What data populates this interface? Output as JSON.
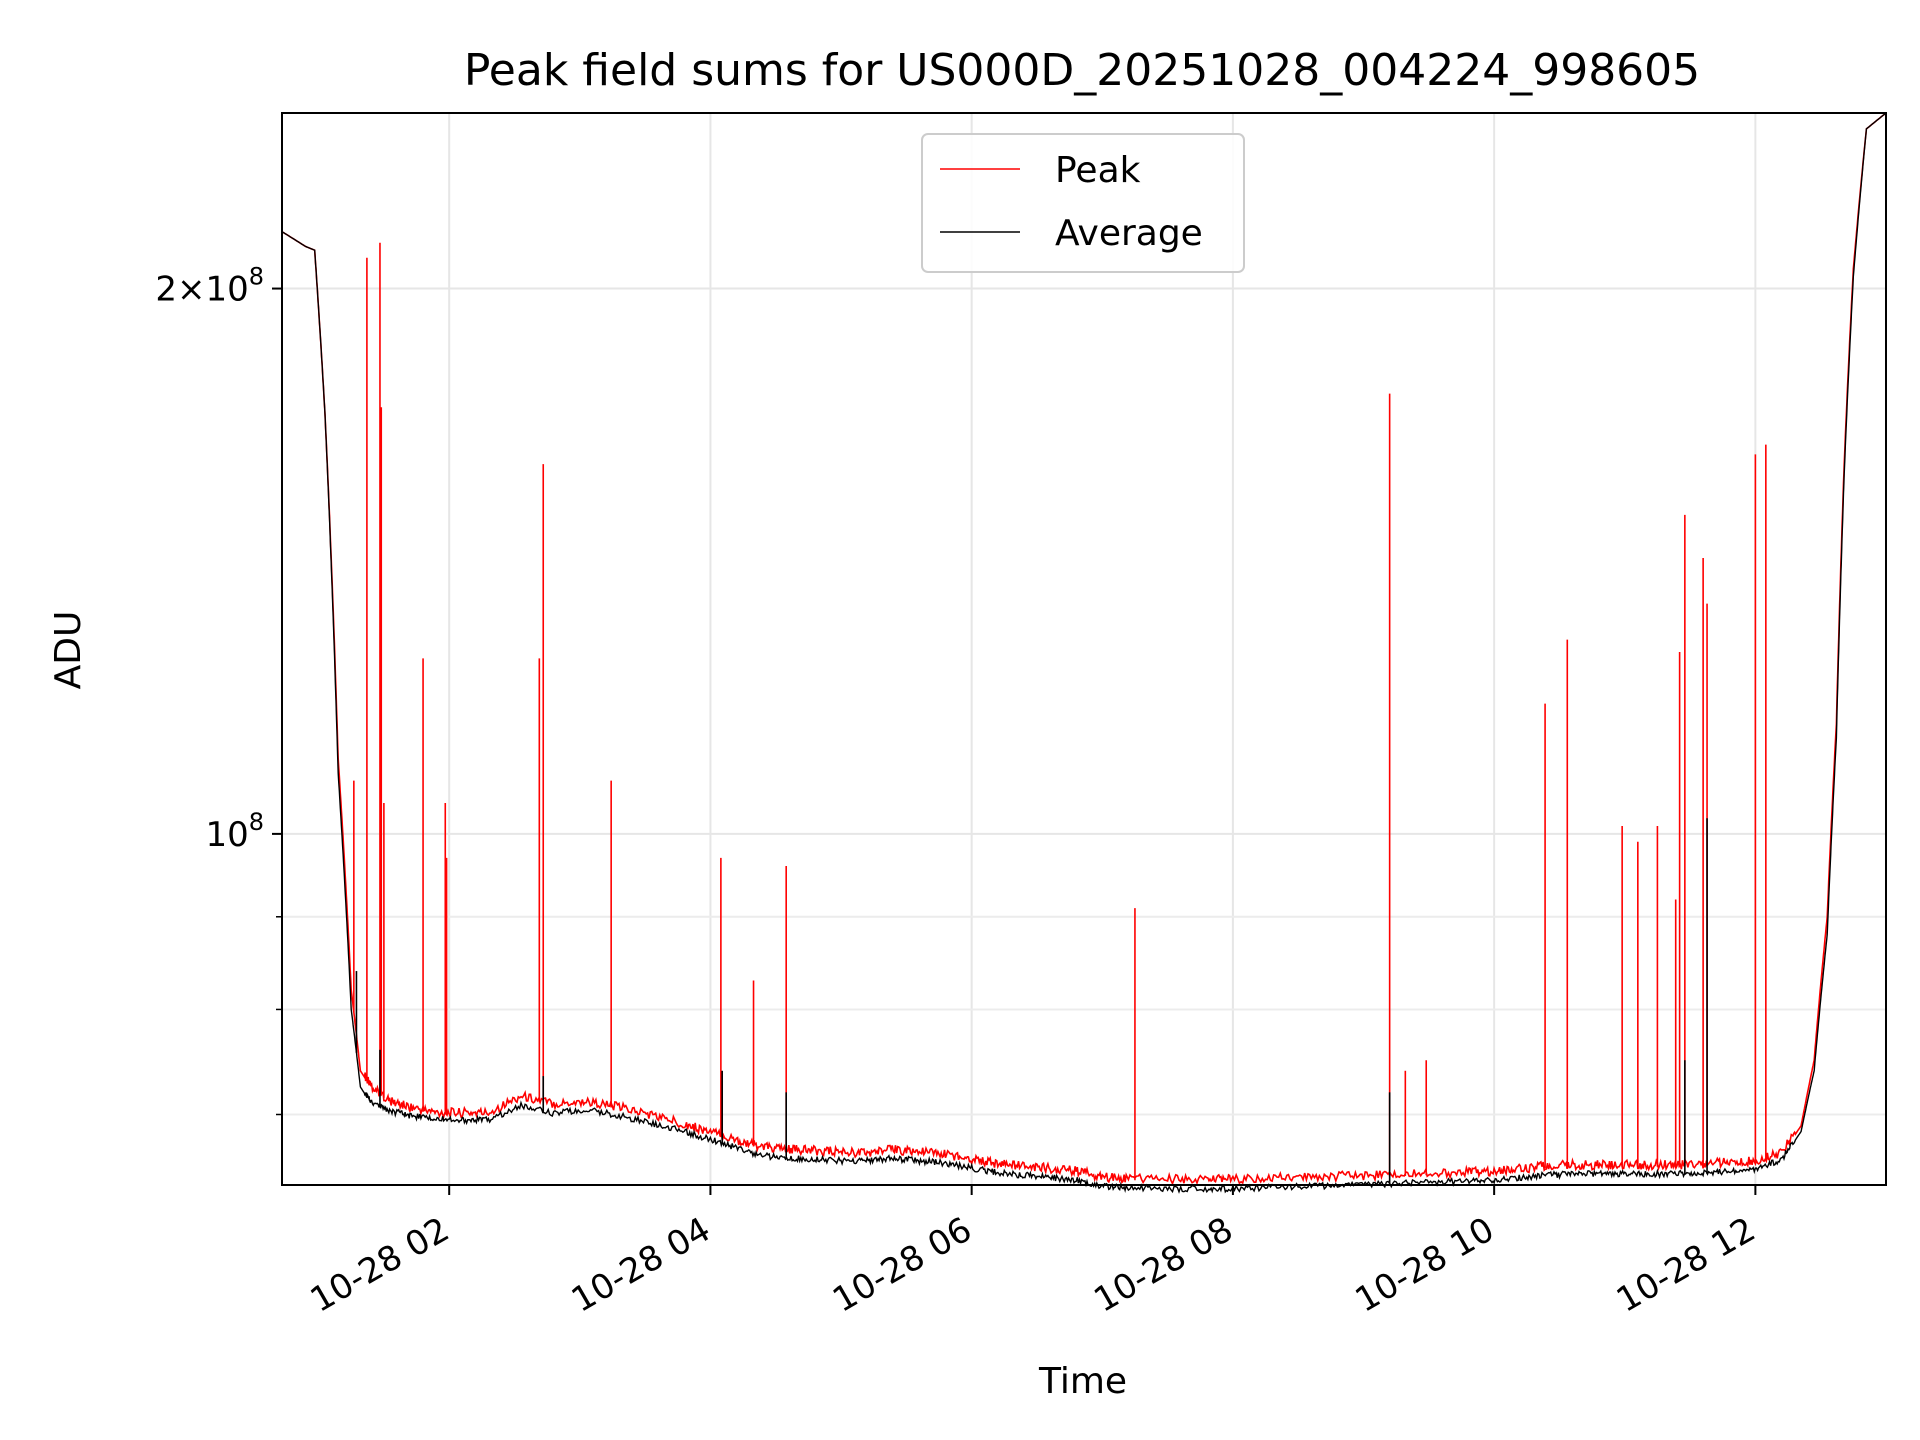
{
  "chart_data": {
    "type": "line",
    "title": "Peak field sums for US000D_20251028_004224_998605",
    "xlabel": "Time",
    "ylabel": "ADU",
    "yscale": "log",
    "ylim": [
      64000000,
      250000000
    ],
    "xlim_hours": [
      0.72,
      13.0
    ],
    "x_ticks": [
      {
        "hour": 2,
        "label": "10-28 02"
      },
      {
        "hour": 4,
        "label": "10-28 04"
      },
      {
        "hour": 6,
        "label": "10-28 06"
      },
      {
        "hour": 8,
        "label": "10-28 08"
      },
      {
        "hour": 10,
        "label": "10-28 10"
      },
      {
        "hour": 12,
        "label": "10-28 12"
      }
    ],
    "y_major_ticks": [
      {
        "value": 200000000,
        "label_base": "2×10",
        "label_exp": "8"
      },
      {
        "value": 100000000,
        "label_base": "10",
        "label_exp": "8"
      }
    ],
    "y_minor_ticks": [
      90000000,
      80000000,
      70000000
    ],
    "grid": true,
    "legend_position": "upper-center",
    "colors": {
      "peak": "#ff0000",
      "average": "#000000"
    },
    "series": [
      {
        "name": "Peak",
        "color": "#ff0000",
        "x": [
          0.72,
          0.9,
          0.97,
          1.05,
          1.15,
          1.25,
          1.32,
          1.4,
          1.55,
          1.7,
          1.9,
          2.1,
          2.3,
          2.55,
          2.8,
          3.05,
          3.3,
          3.55,
          3.8,
          4.0,
          4.2,
          4.4,
          4.6,
          4.8,
          5.0,
          5.2,
          5.4,
          5.6,
          5.8,
          6.0,
          6.2,
          6.4,
          6.6,
          6.8,
          7.0,
          7.2,
          7.5,
          7.8,
          8.0,
          8.3,
          8.6,
          8.9,
          9.2,
          9.5,
          9.8,
          10.0,
          10.2,
          10.4,
          10.6,
          10.8,
          11.0,
          11.2,
          11.4,
          11.6,
          11.8,
          12.0,
          12.2,
          12.35,
          12.45,
          12.55,
          12.62,
          12.68,
          12.75,
          12.85,
          13.0
        ],
        "values": [
          215000000,
          211000000,
          210000000,
          170000000,
          110000000,
          82000000,
          74000000,
          72500000,
          71000000,
          70500000,
          70000000,
          70000000,
          70000000,
          71500000,
          70800000,
          71000000,
          70500000,
          69800000,
          69000000,
          68300000,
          67600000,
          67000000,
          66800000,
          66700000,
          66600000,
          66500000,
          66800000,
          66600000,
          66400000,
          66000000,
          65600000,
          65400000,
          65200000,
          65000000,
          64500000,
          64400000,
          64300000,
          64300000,
          64300000,
          64400000,
          64500000,
          64600000,
          64700000,
          64800000,
          64900000,
          65000000,
          65200000,
          65400000,
          65500000,
          65500000,
          65500000,
          65500000,
          65500000,
          65600000,
          65700000,
          65800000,
          66500000,
          69000000,
          75000000,
          90000000,
          115000000,
          160000000,
          205000000,
          245000000,
          250000000
        ],
        "spikes": [
          {
            "x": 1.27,
            "value": 107000000
          },
          {
            "x": 1.37,
            "value": 208000000
          },
          {
            "x": 1.47,
            "value": 212000000
          },
          {
            "x": 1.48,
            "value": 172000000
          },
          {
            "x": 1.5,
            "value": 104000000
          },
          {
            "x": 1.8,
            "value": 125000000
          },
          {
            "x": 1.97,
            "value": 104000000
          },
          {
            "x": 1.98,
            "value": 97000000
          },
          {
            "x": 2.69,
            "value": 125000000
          },
          {
            "x": 2.72,
            "value": 160000000
          },
          {
            "x": 3.24,
            "value": 107000000
          },
          {
            "x": 4.08,
            "value": 97000000
          },
          {
            "x": 4.33,
            "value": 83000000
          },
          {
            "x": 4.58,
            "value": 96000000
          },
          {
            "x": 7.25,
            "value": 91000000
          },
          {
            "x": 9.2,
            "value": 175000000
          },
          {
            "x": 9.32,
            "value": 74000000
          },
          {
            "x": 9.48,
            "value": 75000000
          },
          {
            "x": 10.39,
            "value": 118000000
          },
          {
            "x": 10.56,
            "value": 128000000
          },
          {
            "x": 10.98,
            "value": 101000000
          },
          {
            "x": 11.1,
            "value": 99000000
          },
          {
            "x": 11.25,
            "value": 101000000
          },
          {
            "x": 11.39,
            "value": 92000000
          },
          {
            "x": 11.42,
            "value": 126000000
          },
          {
            "x": 11.46,
            "value": 150000000
          },
          {
            "x": 11.6,
            "value": 142000000
          },
          {
            "x": 11.63,
            "value": 134000000
          },
          {
            "x": 12.0,
            "value": 162000000
          },
          {
            "x": 12.08,
            "value": 164000000
          }
        ]
      },
      {
        "name": "Average",
        "color": "#000000",
        "x": [
          0.72,
          0.9,
          0.97,
          1.05,
          1.15,
          1.25,
          1.32,
          1.4,
          1.55,
          1.7,
          1.9,
          2.1,
          2.3,
          2.55,
          2.8,
          3.05,
          3.3,
          3.55,
          3.8,
          4.0,
          4.2,
          4.4,
          4.6,
          4.8,
          5.0,
          5.2,
          5.4,
          5.6,
          5.8,
          6.0,
          6.2,
          6.4,
          6.6,
          6.8,
          7.0,
          7.2,
          7.5,
          7.8,
          8.0,
          8.3,
          8.6,
          8.9,
          9.2,
          9.5,
          9.8,
          10.0,
          10.2,
          10.4,
          10.6,
          10.8,
          11.0,
          11.2,
          11.4,
          11.6,
          11.8,
          12.0,
          12.2,
          12.35,
          12.45,
          12.55,
          12.62,
          12.68,
          12.75,
          12.85,
          13.0
        ],
        "values": [
          215000000,
          211000000,
          210000000,
          170000000,
          108000000,
          80000000,
          72500000,
          71000000,
          70200000,
          69800000,
          69500000,
          69400000,
          69400000,
          70700000,
          70000000,
          70300000,
          69800000,
          69100000,
          68400000,
          67700000,
          67000000,
          66300000,
          66100000,
          66000000,
          65900000,
          65900000,
          66100000,
          65900000,
          65700000,
          65300000,
          64900000,
          64700000,
          64500000,
          64300000,
          63800000,
          63700000,
          63600000,
          63600000,
          63600000,
          63700000,
          63800000,
          63900000,
          64000000,
          64100000,
          64200000,
          64300000,
          64500000,
          64700000,
          64800000,
          64800000,
          64800000,
          64800000,
          64800000,
          64900000,
          65000000,
          65200000,
          66000000,
          68500000,
          74000000,
          88000000,
          113000000,
          158000000,
          203000000,
          245000000,
          250000000
        ],
        "spikes": [
          {
            "x": 1.29,
            "value": 84000000
          },
          {
            "x": 1.47,
            "value": 76000000
          },
          {
            "x": 2.72,
            "value": 73500000
          },
          {
            "x": 4.09,
            "value": 74000000
          },
          {
            "x": 4.58,
            "value": 72000000
          },
          {
            "x": 9.2,
            "value": 72000000
          },
          {
            "x": 11.46,
            "value": 75000000
          },
          {
            "x": 11.63,
            "value": 102000000
          }
        ]
      }
    ]
  }
}
